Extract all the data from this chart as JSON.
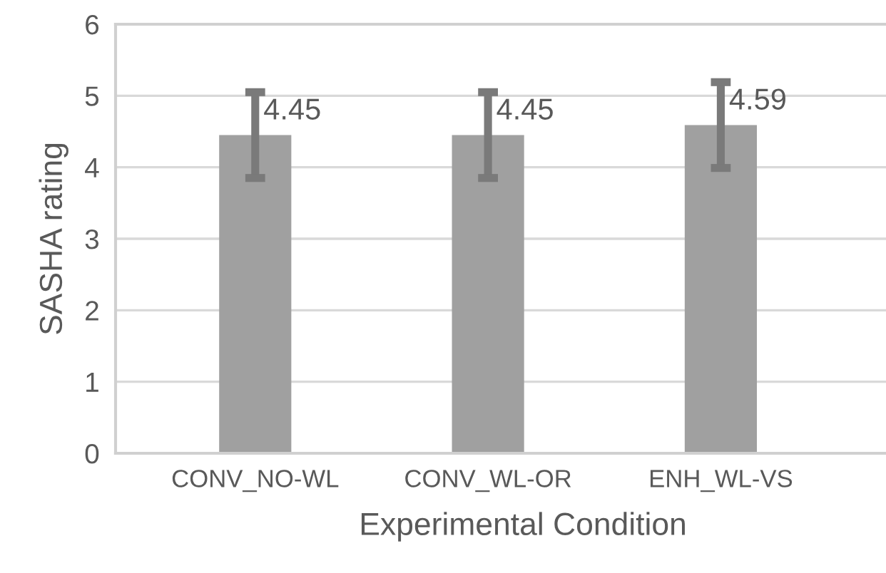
{
  "chart_data": {
    "type": "bar",
    "xlabel": "Experimental Condition",
    "ylabel": "SASHA rating",
    "categories": [
      "CONV_NO-WL",
      "CONV_WL-OR",
      "ENH_WL-VS"
    ],
    "values": [
      4.45,
      4.45,
      4.59
    ],
    "color": "#a0a0a0",
    "errors": [
      0.6,
      0.6,
      0.6
    ],
    "ylim": [
      0,
      6
    ],
    "yticks": [
      0,
      1,
      2,
      3,
      4,
      5,
      6
    ],
    "grid": "y",
    "data_labels": true,
    "legend": false
  }
}
